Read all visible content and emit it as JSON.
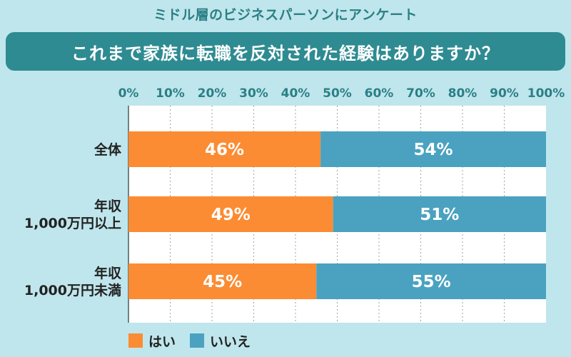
{
  "header": {
    "survey_label": "ミドル層のビジネスパーソンにアンケート",
    "question": "これまで家族に転職を反対された経験はありますか？"
  },
  "colors": {
    "yes": "#fb8c33",
    "no": "#4aa2c0",
    "background": "#bfe6ec",
    "banner": "#2e8b91"
  },
  "chart_data": {
    "type": "bar",
    "orientation": "horizontal-stacked-100",
    "categories": [
      [
        "全体"
      ],
      [
        "年収",
        "1,000万円以上"
      ],
      [
        "年収",
        "1,000万円未満"
      ]
    ],
    "series": [
      {
        "name": "はい",
        "values": [
          46,
          49,
          45
        ],
        "labels": [
          "46%",
          "49%",
          "45%"
        ]
      },
      {
        "name": "いいえ",
        "values": [
          54,
          51,
          55
        ],
        "labels": [
          "54%",
          "51%",
          "55%"
        ]
      }
    ],
    "xlim": [
      0,
      100
    ],
    "xticks": [
      "0%",
      "10%",
      "20%",
      "30%",
      "40%",
      "50%",
      "60%",
      "70%",
      "80%",
      "90%",
      "100%"
    ],
    "grid": true,
    "legend_position": "bottom-left"
  }
}
